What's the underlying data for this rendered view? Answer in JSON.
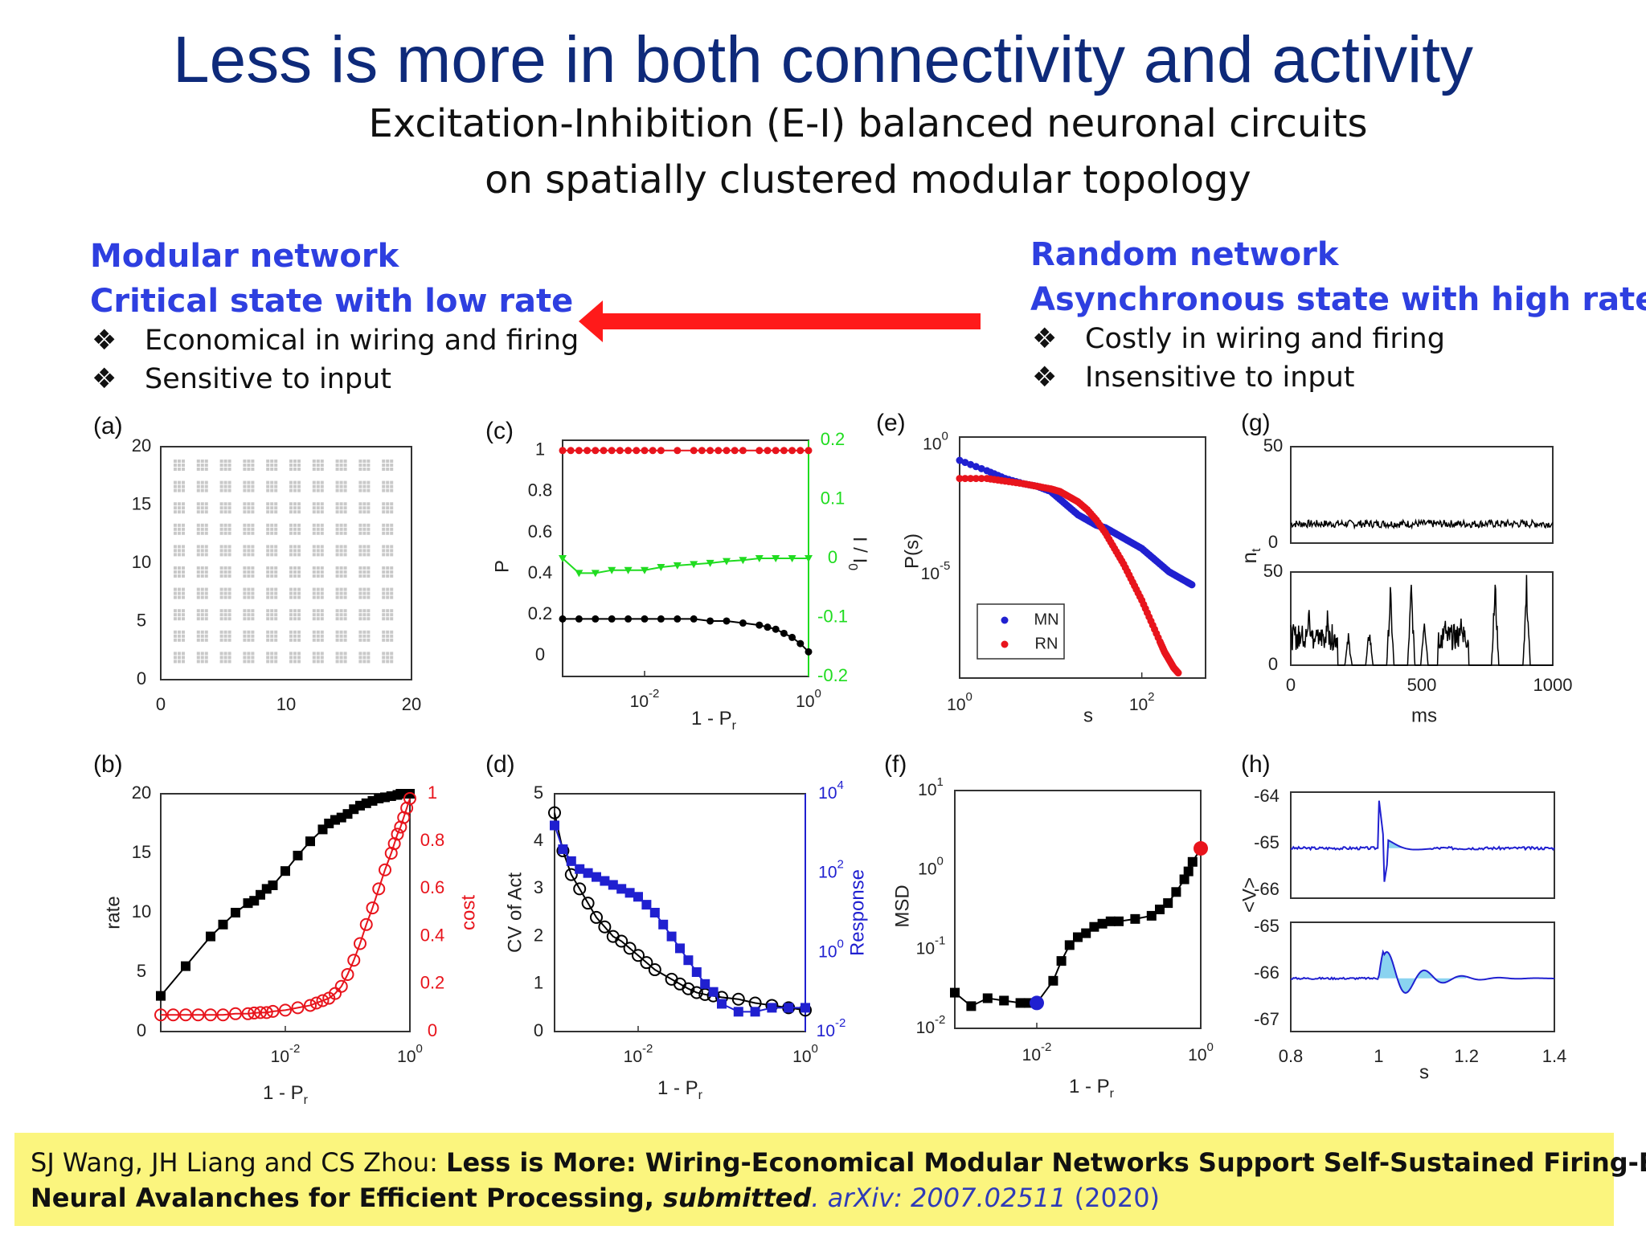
{
  "slide": {
    "title": "Less is more in both connectivity and activity",
    "subtitle_line1": "Excitation-Inhibition (E-I) balanced neuronal circuits",
    "subtitle_line2": "on spatially clustered modular topology"
  },
  "left_panel": {
    "heading1": "Modular network",
    "heading2": "Critical state with low rate",
    "bullets": [
      "Economical in wiring and firing",
      "Sensitive to input"
    ]
  },
  "right_panel": {
    "heading1": "Random network",
    "heading2": "Asynchronous state with high rate",
    "bullets": [
      "Costly in wiring and firing",
      "Insensitive to input"
    ]
  },
  "bullet_marker": "❖",
  "colors": {
    "title": "#0e2a7a",
    "heading": "#2e3fe0",
    "arrow": "#ff1a1a",
    "citation_bg": "#fbf57e",
    "series_black": "#000000",
    "series_red": "#e8141c",
    "series_green": "#20dc20",
    "series_blue": "#2020d0",
    "highlight": "#8ad3f0"
  },
  "citation": {
    "authors": "SJ Wang, JH Liang and CS Zhou: ",
    "title_line1": "Less is More: Wiring-Economical Modular Networks Support Self-Sustained Firing-Economical",
    "title_line2": "Neural Avalanches for Efficient Processing, ",
    "status": "submitted",
    "dot": ".",
    "arxiv": " arXiv: 2007.02511",
    "year": " (2020)"
  },
  "chart_data": [
    {
      "panel": "(a)",
      "type": "scatter",
      "xlabel": "",
      "ylabel": "",
      "xlim": [
        0,
        20
      ],
      "ylim": [
        0,
        20
      ],
      "xticks": [
        "0",
        "10",
        "20"
      ],
      "yticks": [
        "0",
        "5",
        "10",
        "15",
        "20"
      ],
      "module_grid": 10,
      "nodes_per_module_side": 3
    },
    {
      "panel": "(b)",
      "type": "line",
      "xlabel": "1 - P",
      "xlabel_sub": "r",
      "ylabel": "rate",
      "y2label": "cost",
      "xscale": "log",
      "xlim": [
        -4,
        0
      ],
      "ylim": [
        0,
        20
      ],
      "y2lim": [
        0,
        1
      ],
      "xticks": [
        {
          "e": -2,
          "label": "10"
        },
        {
          "e": 0,
          "label": "10"
        }
      ],
      "yticks": [
        "0",
        "5",
        "10",
        "15",
        "20"
      ],
      "y2ticks": [
        "0",
        "0.2",
        "0.4",
        "0.6",
        "0.8",
        "1"
      ],
      "series": [
        {
          "axis": "left",
          "marker": "square",
          "x": [
            -4,
            -3.6,
            -3.2,
            -3.0,
            -2.8,
            -2.6,
            -2.5,
            -2.4,
            -2.3,
            -2.2,
            -2.0,
            -1.8,
            -1.6,
            -1.4,
            -1.3,
            -1.2,
            -1.1,
            -1.0,
            -0.9,
            -0.8,
            -0.7,
            -0.6,
            -0.5,
            -0.4,
            -0.3,
            -0.2,
            -0.15,
            -0.1,
            -0.05,
            0
          ],
          "y": [
            3,
            5.5,
            8,
            9,
            10,
            10.8,
            11,
            11.5,
            12,
            12.3,
            13.5,
            14.8,
            16,
            17,
            17.5,
            17.8,
            18,
            18.3,
            18.7,
            19,
            19.2,
            19.4,
            19.6,
            19.7,
            19.8,
            19.9,
            20,
            20,
            20,
            20
          ]
        },
        {
          "axis": "right",
          "marker": "circle",
          "x": [
            -4,
            -3.8,
            -3.6,
            -3.4,
            -3.2,
            -3.0,
            -2.8,
            -2.6,
            -2.5,
            -2.4,
            -2.3,
            -2.2,
            -2.0,
            -1.8,
            -1.6,
            -1.5,
            -1.4,
            -1.3,
            -1.2,
            -1.1,
            -1.0,
            -0.9,
            -0.8,
            -0.7,
            -0.6,
            -0.5,
            -0.4,
            -0.3,
            -0.25,
            -0.2,
            -0.15,
            -0.1,
            -0.05,
            0
          ],
          "y": [
            0.07,
            0.07,
            0.07,
            0.07,
            0.07,
            0.07,
            0.075,
            0.075,
            0.078,
            0.08,
            0.08,
            0.085,
            0.09,
            0.1,
            0.11,
            0.12,
            0.13,
            0.14,
            0.16,
            0.19,
            0.24,
            0.3,
            0.37,
            0.45,
            0.52,
            0.6,
            0.68,
            0.75,
            0.79,
            0.83,
            0.86,
            0.9,
            0.94,
            0.98
          ]
        }
      ]
    },
    {
      "panel": "(c)",
      "type": "line",
      "xlabel": "1 - P",
      "xlabel_sub": "r",
      "ylabel": "P",
      "y2label": "I / I",
      "y2label_sub": "0",
      "xscale": "log",
      "xlim": [
        -3,
        0
      ],
      "ylim": [
        -0.1,
        1.05
      ],
      "y2lim": [
        -0.2,
        0.2
      ],
      "xticks": [
        {
          "e": -2,
          "label": "10"
        },
        {
          "e": 0,
          "label": "10"
        }
      ],
      "yticks": [
        "0",
        "0.2",
        "0.4",
        "0.6",
        "0.8",
        "1"
      ],
      "y2ticks": [
        "-0.2",
        "-0.1",
        "0",
        "0.1",
        "0.2"
      ],
      "series": [
        {
          "axis": "left",
          "color": "red",
          "marker": "dot",
          "x": [
            -3,
            -2.9,
            -2.8,
            -2.7,
            -2.6,
            -2.5,
            -2.4,
            -2.3,
            -2.2,
            -2.1,
            -2.0,
            -1.9,
            -1.8,
            -1.6,
            -1.4,
            -1.3,
            -1.2,
            -1.1,
            -1.0,
            -0.9,
            -0.8,
            -0.6,
            -0.5,
            -0.4,
            -0.3,
            -0.2,
            -0.1,
            0
          ],
          "y": [
            1,
            1,
            1,
            1,
            1,
            1,
            1,
            1,
            1,
            1,
            1,
            1,
            1,
            1,
            1,
            1,
            1,
            1,
            1,
            1,
            1,
            1,
            1,
            1,
            1,
            1,
            1,
            1
          ]
        },
        {
          "axis": "left",
          "color": "black",
          "marker": "dot",
          "x": [
            -3,
            -2.8,
            -2.6,
            -2.4,
            -2.2,
            -2.0,
            -1.8,
            -1.6,
            -1.4,
            -1.2,
            -1.0,
            -0.8,
            -0.6,
            -0.5,
            -0.4,
            -0.3,
            -0.2,
            -0.1,
            0
          ],
          "y": [
            0.18,
            0.18,
            0.18,
            0.18,
            0.18,
            0.18,
            0.18,
            0.18,
            0.18,
            0.17,
            0.17,
            0.16,
            0.15,
            0.14,
            0.13,
            0.11,
            0.09,
            0.06,
            0.02
          ]
        },
        {
          "axis": "right",
          "color": "green",
          "marker": "triangle",
          "x": [
            -3,
            -2.8,
            -2.6,
            -2.4,
            -2.2,
            -2.0,
            -1.8,
            -1.6,
            -1.4,
            -1.2,
            -1.0,
            -0.8,
            -0.6,
            -0.4,
            -0.2,
            0
          ],
          "y": [
            0,
            -0.025,
            -0.025,
            -0.02,
            -0.02,
            -0.02,
            -0.015,
            -0.012,
            -0.01,
            -0.008,
            -0.005,
            -0.003,
            0,
            0,
            0,
            0
          ]
        }
      ]
    },
    {
      "panel": "(d)",
      "type": "line",
      "xlabel": "1 - P",
      "xlabel_sub": "r",
      "ylabel": "CV of Act",
      "y2label": "Response",
      "xscale": "log",
      "xlim": [
        -3,
        0
      ],
      "ylim": [
        0,
        5
      ],
      "y2lim": [
        -2,
        4
      ],
      "xticks": [
        {
          "e": -2,
          "label": "10"
        },
        {
          "e": 0,
          "label": "10"
        }
      ],
      "yticks": [
        "0",
        "1",
        "2",
        "3",
        "4",
        "5"
      ],
      "y2ticks": [
        {
          "e": -2,
          "label": "10"
        },
        {
          "e": 0,
          "label": "10"
        },
        {
          "e": 2,
          "label": "10"
        },
        {
          "e": 4,
          "label": "10"
        }
      ],
      "series": [
        {
          "axis": "left",
          "color": "black",
          "marker": "circle",
          "x": [
            -3,
            -2.9,
            -2.8,
            -2.7,
            -2.6,
            -2.5,
            -2.4,
            -2.3,
            -2.2,
            -2.1,
            -2.0,
            -1.9,
            -1.8,
            -1.6,
            -1.5,
            -1.4,
            -1.3,
            -1.2,
            -1.1,
            -1.0,
            -0.8,
            -0.6,
            -0.4,
            -0.2,
            0
          ],
          "y": [
            4.6,
            3.8,
            3.3,
            3.0,
            2.7,
            2.4,
            2.2,
            2.0,
            1.9,
            1.75,
            1.6,
            1.45,
            1.3,
            1.1,
            1.0,
            0.9,
            0.82,
            0.78,
            0.75,
            0.72,
            0.68,
            0.6,
            0.55,
            0.5,
            0.45
          ]
        },
        {
          "axis": "right",
          "color": "blue",
          "marker": "square",
          "x": [
            -3,
            -2.9,
            -2.8,
            -2.7,
            -2.6,
            -2.5,
            -2.4,
            -2.3,
            -2.2,
            -2.1,
            -2.0,
            -1.9,
            -1.8,
            -1.7,
            -1.6,
            -1.5,
            -1.4,
            -1.3,
            -1.2,
            -1.1,
            -1.0,
            -0.8,
            -0.6,
            -0.4,
            -0.2,
            0
          ],
          "y": [
            3.2,
            2.6,
            2.3,
            2.1,
            2.0,
            1.9,
            1.8,
            1.7,
            1.6,
            1.5,
            1.4,
            1.2,
            1.0,
            0.7,
            0.4,
            0.1,
            -0.2,
            -0.5,
            -0.8,
            -1.0,
            -1.3,
            -1.5,
            -1.5,
            -1.4,
            -1.4,
            -1.4
          ]
        }
      ]
    },
    {
      "panel": "(e)",
      "type": "scatter",
      "xlabel": "s",
      "ylabel": "P(s)",
      "xscale": "log",
      "yscale": "log",
      "xlim": [
        0,
        2.7
      ],
      "ylim": [
        -9,
        0.3
      ],
      "xticks": [
        {
          "e": 0,
          "label": "10"
        },
        {
          "e": 2,
          "label": "10"
        }
      ],
      "yticks": [
        {
          "e": 0,
          "label": "10"
        },
        {
          "e": -5,
          "label": "10"
        }
      ],
      "legend": [
        {
          "name": "MN",
          "color": "blue"
        },
        {
          "name": "RN",
          "color": "red"
        }
      ],
      "legend_position": "bottom-left",
      "series": [
        {
          "name": "MN",
          "color": "blue",
          "x": [
            0,
            0.3,
            0.5,
            0.7,
            0.85,
            1.0,
            1.1,
            1.2,
            1.3,
            1.4,
            1.5,
            1.6,
            1.7,
            1.8,
            1.9,
            2.0,
            2.1,
            2.2,
            2.3,
            2.4,
            2.5,
            2.55
          ],
          "y": [
            -0.6,
            -1.0,
            -1.3,
            -1.5,
            -1.6,
            -1.8,
            -2.1,
            -2.4,
            -2.7,
            -2.9,
            -3.1,
            -3.2,
            -3.4,
            -3.6,
            -3.8,
            -4.0,
            -4.3,
            -4.6,
            -4.9,
            -5.1,
            -5.3,
            -5.4
          ]
        },
        {
          "name": "RN",
          "color": "red",
          "x": [
            0,
            0.3,
            0.5,
            0.7,
            0.85,
            1.0,
            1.1,
            1.2,
            1.3,
            1.4,
            1.5,
            1.6,
            1.7,
            1.8,
            1.9,
            2.0,
            2.1,
            2.2,
            2.25,
            2.3,
            2.35,
            2.4
          ],
          "y": [
            -1.3,
            -1.3,
            -1.4,
            -1.5,
            -1.6,
            -1.7,
            -1.8,
            -2.0,
            -2.2,
            -2.5,
            -2.9,
            -3.4,
            -4.0,
            -4.6,
            -5.3,
            -6.0,
            -6.8,
            -7.6,
            -8.0,
            -8.3,
            -8.6,
            -8.8
          ]
        }
      ]
    },
    {
      "panel": "(f)",
      "type": "line",
      "xlabel": "1 - P",
      "xlabel_sub": "r",
      "ylabel": "MSD",
      "xscale": "log",
      "yscale": "log",
      "xlim": [
        -3,
        0
      ],
      "ylim": [
        -2,
        1
      ],
      "xticks": [
        {
          "e": -2,
          "label": "10"
        },
        {
          "e": 0,
          "label": "10"
        }
      ],
      "yticks": [
        {
          "e": -2,
          "label": "10"
        },
        {
          "e": -1,
          "label": "10"
        },
        {
          "e": 0,
          "label": "10"
        },
        {
          "e": 1,
          "label": "10"
        }
      ],
      "highlight": [
        {
          "x": -2.0,
          "y": -1.68,
          "color": "blue"
        },
        {
          "x": 0,
          "y": 0.27,
          "color": "red"
        }
      ],
      "series": [
        {
          "color": "black",
          "marker": "square",
          "x": [
            -3,
            -2.8,
            -2.6,
            -2.4,
            -2.2,
            -2.1,
            -2.0,
            -1.8,
            -1.7,
            -1.6,
            -1.5,
            -1.4,
            -1.3,
            -1.2,
            -1.1,
            -1.0,
            -0.8,
            -0.6,
            -0.5,
            -0.4,
            -0.3,
            -0.2,
            -0.15,
            -0.1,
            0
          ],
          "y": [
            -1.55,
            -1.72,
            -1.62,
            -1.65,
            -1.68,
            -1.68,
            -1.68,
            -1.4,
            -1.15,
            -0.95,
            -0.85,
            -0.8,
            -0.72,
            -0.68,
            -0.65,
            -0.65,
            -0.62,
            -0.58,
            -0.5,
            -0.42,
            -0.28,
            -0.12,
            -0.02,
            0.1,
            0.27
          ]
        }
      ]
    },
    {
      "panel": "(g)",
      "type": "line",
      "xlabel": "ms",
      "ylabel": "n",
      "ylabel_sub": "t",
      "xlim": [
        0,
        1000
      ],
      "ylim": [
        0,
        50
      ],
      "xticks": [
        "0",
        "500",
        "1000"
      ],
      "yticks_top": [
        "0",
        "50"
      ],
      "yticks_bottom": [
        "0",
        "50"
      ],
      "series": [
        {
          "name": "top",
          "color": "black",
          "pattern": "noise",
          "level": 10,
          "amplitude": 2
        },
        {
          "name": "bottom",
          "color": "black",
          "pattern": "bursts",
          "peaks": [
            [
              40,
              25
            ],
            [
              70,
              35
            ],
            [
              100,
              20
            ],
            [
              140,
              30
            ],
            [
              220,
              18
            ],
            [
              300,
              22
            ],
            [
              380,
              45
            ],
            [
              460,
              48
            ],
            [
              510,
              32
            ],
            [
              590,
              30
            ],
            [
              650,
              28
            ],
            [
              780,
              50
            ],
            [
              900,
              50
            ]
          ]
        }
      ]
    },
    {
      "panel": "(h)",
      "type": "line",
      "xlabel": "s",
      "ylabel": "<V>",
      "xlim": [
        0.8,
        1.4
      ],
      "xticks": [
        "0.8",
        "1",
        "1.2",
        "1.4"
      ],
      "yticks_top": [
        "-64",
        "-65",
        "-66"
      ],
      "yticks_bottom": [
        "-65",
        "-66",
        "-67"
      ],
      "series": [
        {
          "name": "top",
          "color": "blue",
          "baseline": -65.1,
          "stim": 1.0,
          "pattern": "spike"
        },
        {
          "name": "bottom",
          "color": "blue",
          "baseline": -66.1,
          "stim": 1.0,
          "pattern": "damped-oscillation"
        }
      ]
    }
  ]
}
